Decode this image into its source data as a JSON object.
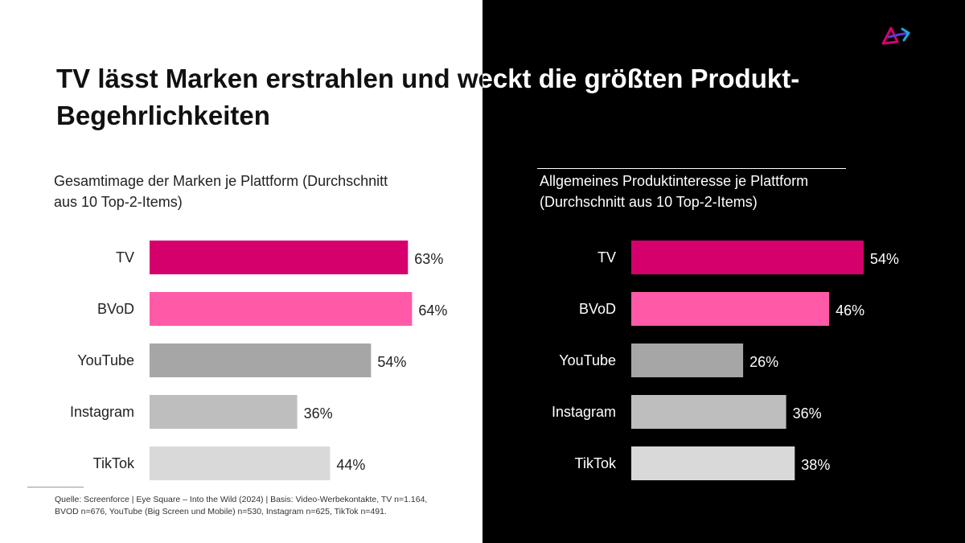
{
  "title": {
    "line1": "TV lässt Marken erstrahlen und weckt die größten Produkt-",
    "line2": "Begehrlichkeiten"
  },
  "logo": {
    "icon": "triangle-arrow-logo-icon",
    "colors": [
      "#d6006d",
      "#5b3bd6",
      "#1ea7e1"
    ]
  },
  "colors": {
    "TV": "#d6006d",
    "BVoD": "#ff5aa8",
    "YouTube": "#a6a6a6",
    "Instagram": "#bebebe",
    "TikTok": "#d9d9d9"
  },
  "chart_data": [
    {
      "type": "bar",
      "orientation": "horizontal",
      "subtitle_line1": "Gesamtimage der Marken je Plattform (Durchschnitt",
      "subtitle_line2": "aus 10 Top-2-Items)",
      "categories": [
        "TV",
        "BVoD",
        "YouTube",
        "Instagram",
        "TikTok"
      ],
      "values": [
        63,
        64,
        54,
        36,
        44
      ],
      "value_labels": [
        "63%",
        "64%",
        "54%",
        "36%",
        "44%"
      ],
      "xlim": [
        0,
        100
      ],
      "grid": false,
      "legend": "none"
    },
    {
      "type": "bar",
      "orientation": "horizontal",
      "subtitle_line1": "Allgemeines Produktinteresse je Plattform",
      "subtitle_line2": "(Durchschnitt aus 10 Top-2-Items)",
      "categories": [
        "TV",
        "BVoD",
        "YouTube",
        "Instagram",
        "TikTok"
      ],
      "values": [
        54,
        46,
        26,
        36,
        38
      ],
      "value_labels": [
        "54%",
        "46%",
        "26%",
        "36%",
        "38%"
      ],
      "xlim": [
        0,
        100
      ],
      "grid": false,
      "legend": "none"
    }
  ],
  "source": {
    "line1": "Quelle: Screenforce | Eye Square – Into the Wild (2024) | Basis: Video-Werbekontakte, TV n=1.164,",
    "line2": "BVOD n=676, YouTube (Big Screen und Mobile) n=530, Instagram n=625, TikTok n=491."
  }
}
